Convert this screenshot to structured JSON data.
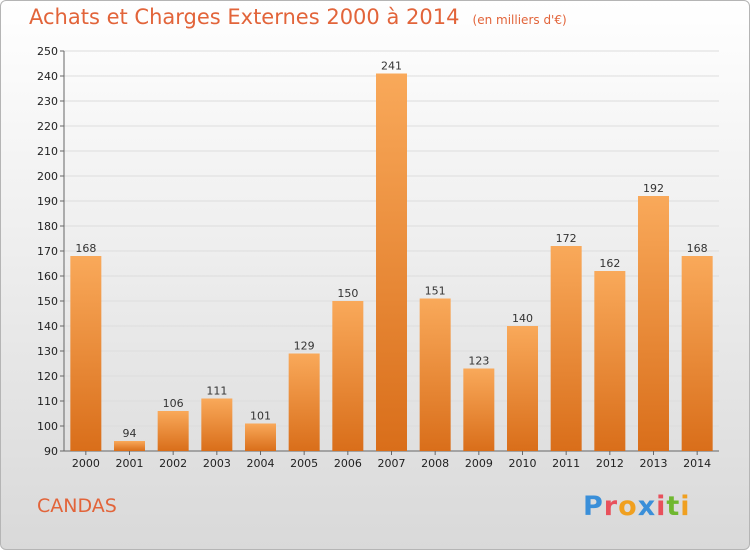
{
  "header": {
    "title": "Achats et Charges Externes 2000 à 2014",
    "unit": "(en milliers d'€)"
  },
  "footer": {
    "commune": "CANDAS",
    "logo_text": "Proxiti",
    "logo_colors": [
      "#3a8fd9",
      "#e8505b",
      "#f0a020",
      "#3a8fd9",
      "#e8505b",
      "#70b830",
      "#f0a020"
    ]
  },
  "colors": {
    "bar_top": "#f9a95a",
    "bar_bottom": "#d96e1a",
    "title": "#e2643a",
    "grid": "#dddddd"
  },
  "chart_data": {
    "type": "bar",
    "title": "Achats et Charges Externes 2000 à 2014",
    "subtitle": "(en milliers d'€)",
    "categories": [
      "2000",
      "2001",
      "2002",
      "2003",
      "2004",
      "2005",
      "2006",
      "2007",
      "2008",
      "2009",
      "2010",
      "2011",
      "2012",
      "2013",
      "2014"
    ],
    "values": [
      168,
      94,
      106,
      111,
      101,
      129,
      150,
      241,
      151,
      123,
      140,
      172,
      162,
      192,
      168
    ],
    "ylim": [
      90,
      250
    ],
    "ytick_step": 10,
    "grid": true,
    "data_labels": true
  }
}
